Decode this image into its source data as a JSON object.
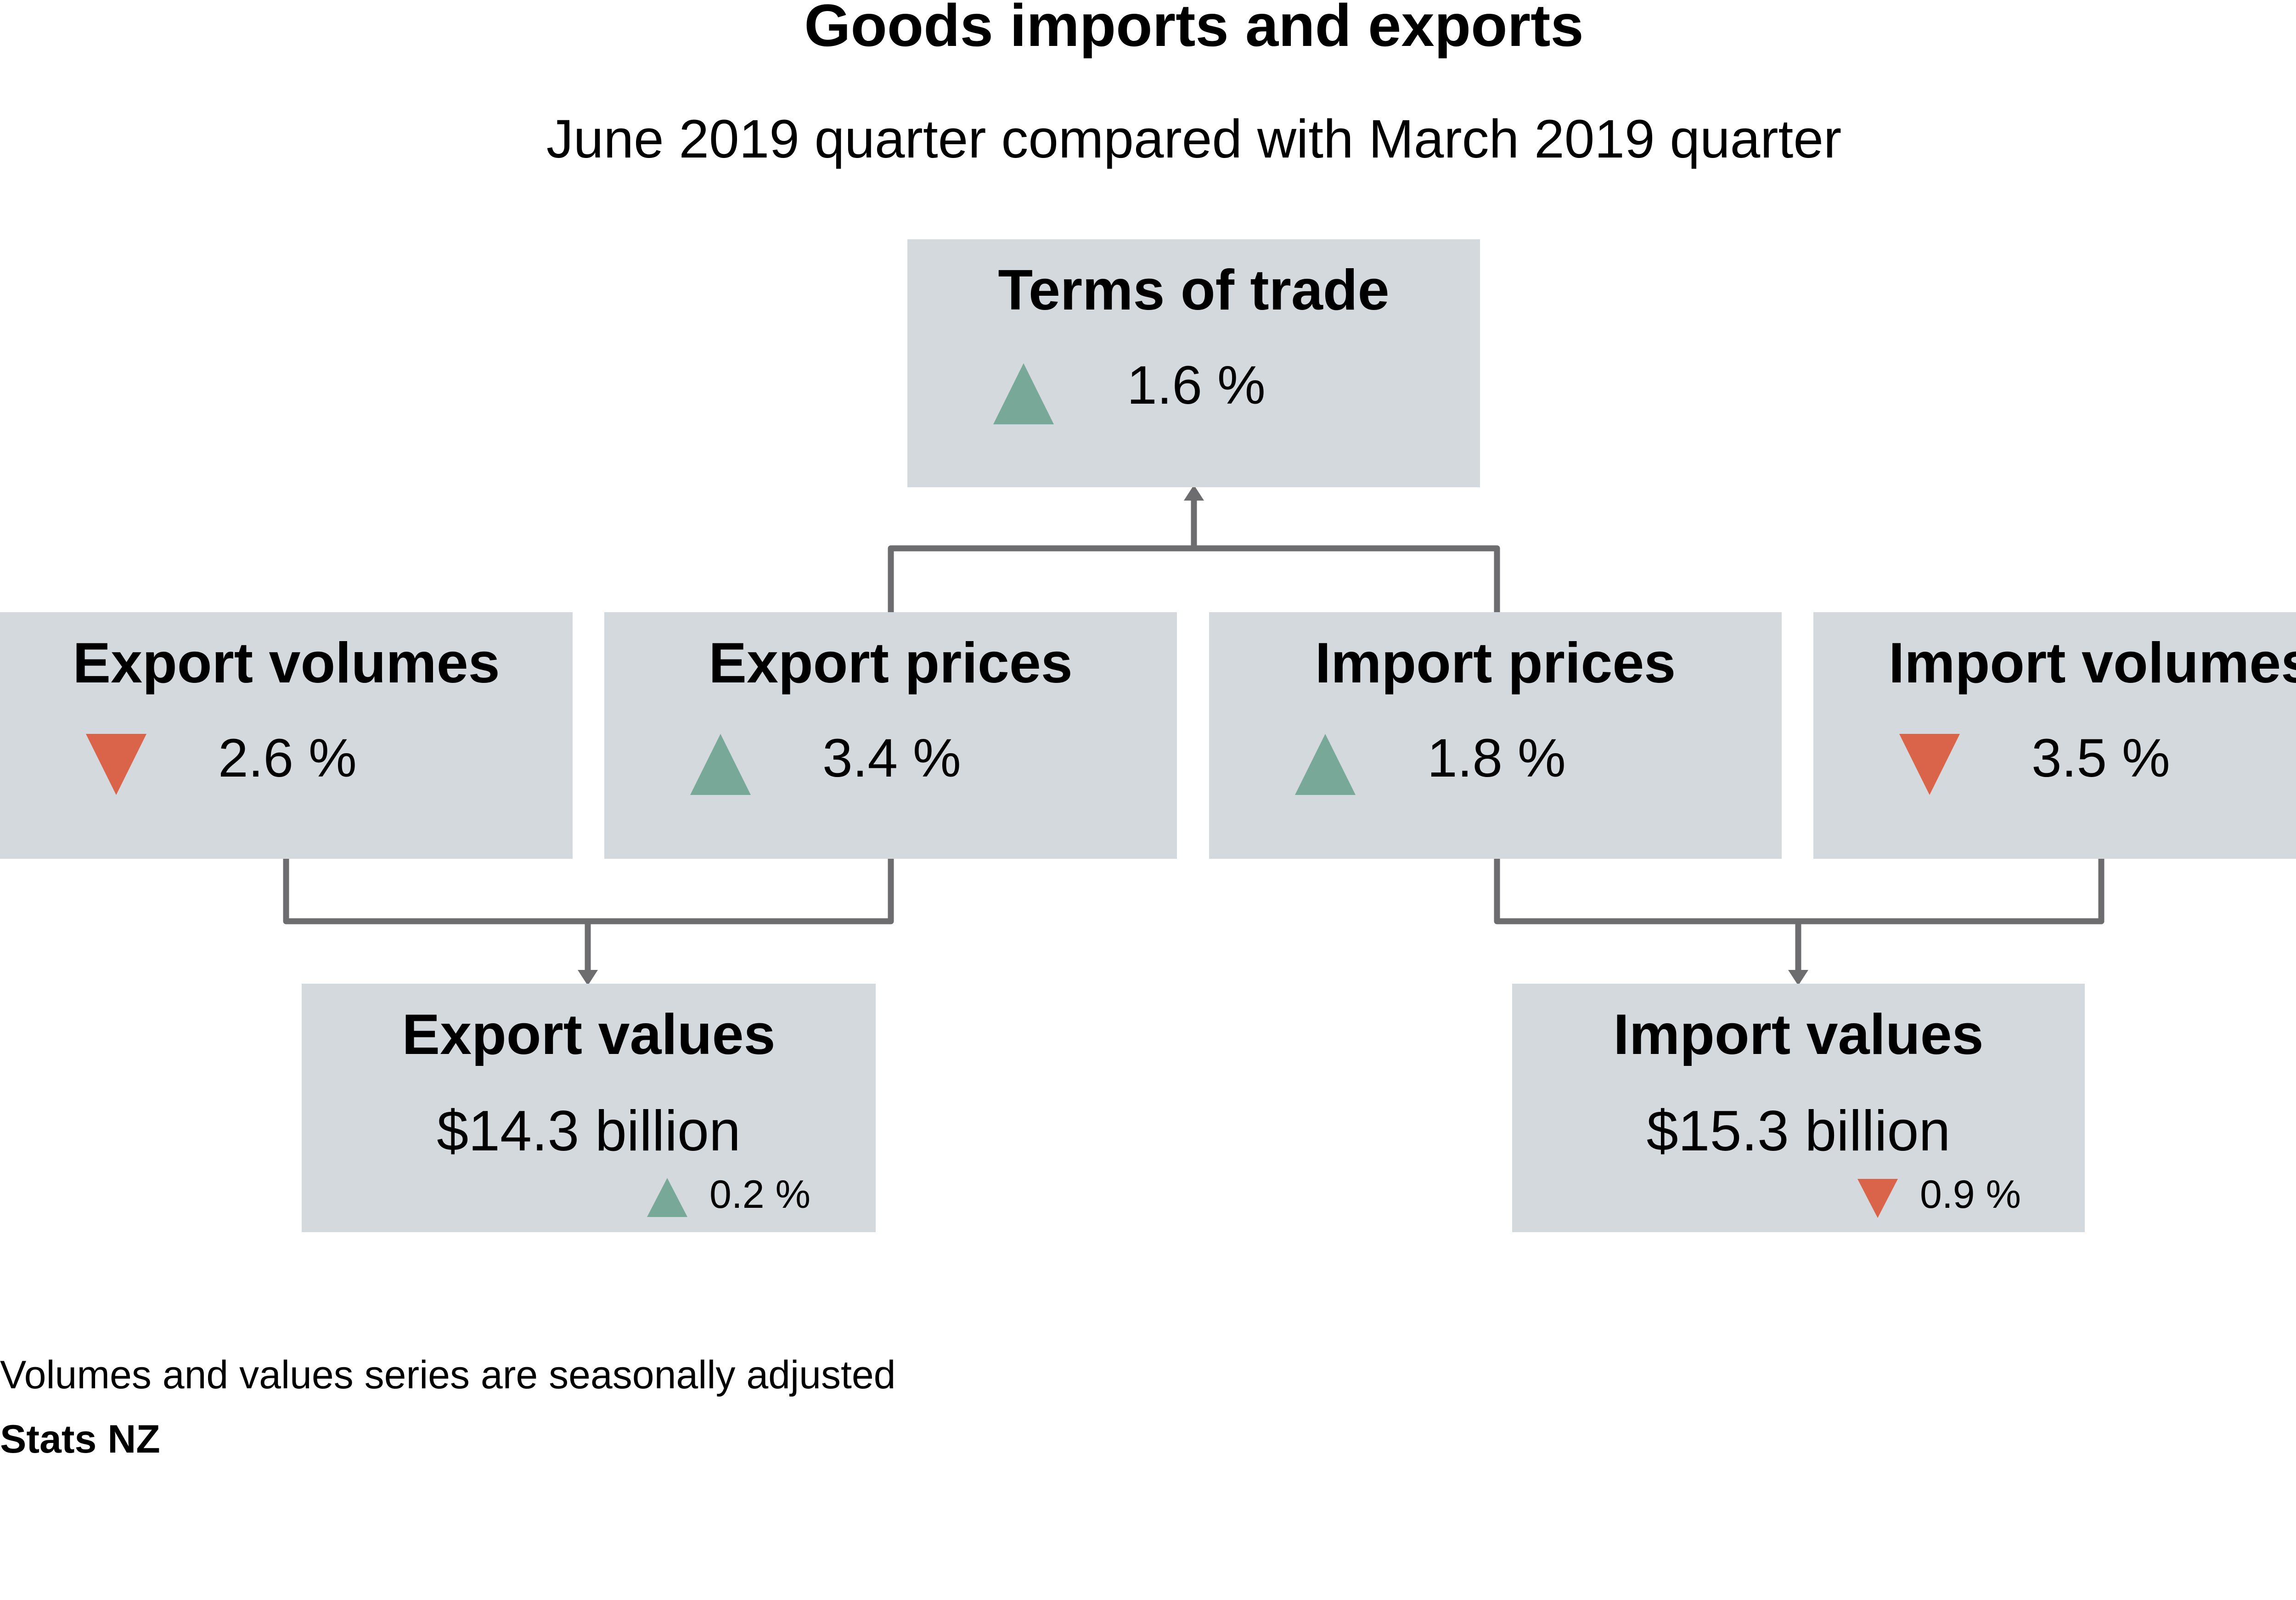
{
  "title": "Goods imports and exports",
  "subtitle": "June 2019 quarter compared with March 2019 quarter",
  "colors": {
    "box": "#d3d9dc",
    "up": "#78a898",
    "down": "#d9644a",
    "connector": "#6d6d70"
  },
  "terms_of_trade": {
    "label": "Terms of trade",
    "direction": "up",
    "change": "1.6 %"
  },
  "export_volumes": {
    "label": "Export volumes",
    "direction": "down",
    "change": "2.6 %"
  },
  "export_prices": {
    "label": "Export prices",
    "direction": "up",
    "change": "3.4 %"
  },
  "import_prices": {
    "label": "Import prices",
    "direction": "up",
    "change": "1.8 %"
  },
  "import_volumes": {
    "label": "Import volumes",
    "direction": "down",
    "change": "3.5 %"
  },
  "export_values": {
    "label": "Export values",
    "amount": "$14.3 billion",
    "direction": "up",
    "change": "0.2 %"
  },
  "import_values": {
    "label": "Import values",
    "amount": "$15.3 billion",
    "direction": "down",
    "change": "0.9 %"
  },
  "footer": {
    "note": "Volumes and values series are seasonally adjusted",
    "source": "Stats NZ"
  }
}
